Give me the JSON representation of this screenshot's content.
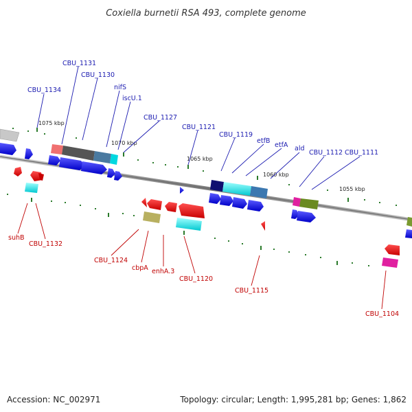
{
  "title": "Coxiella burnetii RSA 493, complete genome",
  "footer": {
    "accession": "Accession: NC_002971",
    "topology": "Topology: circular; Length: 1,995,281 bp; Genes: 1,862"
  },
  "scale_labels": [
    "1075 kbp",
    "1070 kbp",
    "1065 kbp",
    "1060 kbp",
    "1055 kbp"
  ],
  "top_labels": [
    "CBU_1134",
    "CBU_1131",
    "CBU_1130",
    "nifS",
    "iscU.1",
    "CBU_1127",
    "CBU_1121",
    "CBU_1119",
    "etfB",
    "etfA",
    "ald",
    "CBU_1112",
    "CBU_1111"
  ],
  "bottom_labels": [
    "suhB",
    "CBU_1132",
    "CBU_1124",
    "cbpA",
    "enhA.3",
    "CBU_1120",
    "CBU_1115",
    "CBU_1104"
  ],
  "colors": {
    "forward_arrow": "#0000e0",
    "reverse_arrow": "#e00000",
    "backbone": "#888888",
    "tick": "#2a7a2a",
    "cyan": "#00e0e0",
    "olive": "#6a8a20",
    "magenta": "#e020a0",
    "khaki": "#b8b060"
  }
}
